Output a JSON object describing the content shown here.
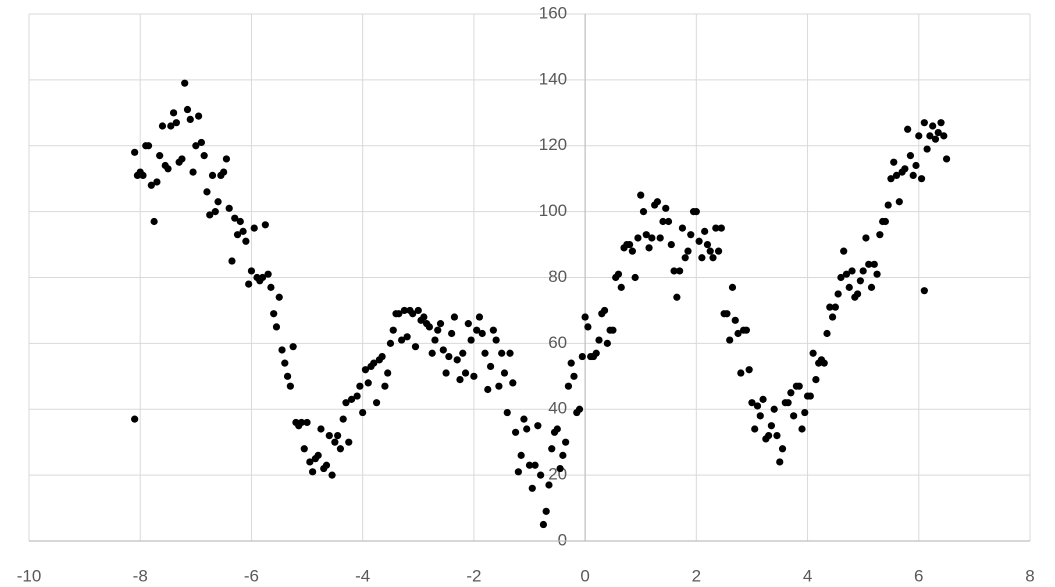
{
  "chart_data": {
    "type": "scatter",
    "color": "#000000",
    "grid": true,
    "xlim": [
      -10,
      8
    ],
    "xticks": [
      -10,
      -8,
      -6,
      -4,
      -2,
      0,
      2,
      4,
      6,
      8
    ],
    "ylim": [
      0,
      160
    ],
    "yticks": [
      0,
      20,
      40,
      60,
      80,
      100,
      120,
      140,
      160
    ],
    "x": [
      -8.1,
      -8.1,
      -8.05,
      -8.0,
      -7.95,
      -7.9,
      -7.85,
      -7.8,
      -7.75,
      -7.7,
      -7.65,
      -7.6,
      -7.55,
      -7.5,
      -7.45,
      -7.4,
      -7.35,
      -7.3,
      -7.25,
      -7.2,
      -7.15,
      -7.1,
      -7.05,
      -7.0,
      -6.95,
      -6.9,
      -6.85,
      -6.8,
      -6.75,
      -6.7,
      -6.65,
      -6.6,
      -6.55,
      -6.5,
      -6.45,
      -6.4,
      -6.35,
      -6.3,
      -6.25,
      -6.2,
      -6.15,
      -6.1,
      -6.05,
      -6.0,
      -5.95,
      -5.9,
      -5.85,
      -5.8,
      -5.75,
      -5.7,
      -5.65,
      -5.6,
      -5.55,
      -5.5,
      -5.45,
      -5.4,
      -5.35,
      -5.3,
      -5.25,
      -5.2,
      -5.15,
      -5.1,
      -5.05,
      -5.0,
      -4.95,
      -4.9,
      -4.85,
      -4.8,
      -4.75,
      -4.7,
      -4.65,
      -4.6,
      -4.55,
      -4.5,
      -4.45,
      -4.4,
      -4.35,
      -4.3,
      -4.25,
      -4.2,
      -4.1,
      -4.05,
      -4.0,
      -3.95,
      -3.9,
      -3.85,
      -3.8,
      -3.75,
      -3.7,
      -3.65,
      -3.6,
      -3.55,
      -3.5,
      -3.45,
      -3.4,
      -3.35,
      -3.3,
      -3.25,
      -3.2,
      -3.15,
      -3.1,
      -3.05,
      -3.0,
      -2.95,
      -2.9,
      -2.85,
      -2.8,
      -2.75,
      -2.7,
      -2.65,
      -2.6,
      -2.55,
      -2.5,
      -2.45,
      -2.4,
      -2.35,
      -2.3,
      -2.25,
      -2.2,
      -2.15,
      -2.1,
      -2.05,
      -2.0,
      -1.95,
      -1.9,
      -1.85,
      -1.8,
      -1.75,
      -1.7,
      -1.65,
      -1.6,
      -1.55,
      -1.5,
      -1.45,
      -1.4,
      -1.35,
      -1.3,
      -1.25,
      -1.2,
      -1.15,
      -1.1,
      -1.05,
      -1.0,
      -0.95,
      -0.9,
      -0.85,
      -0.8,
      -0.75,
      -0.7,
      -0.65,
      -0.6,
      -0.55,
      -0.5,
      -0.45,
      -0.4,
      -0.35,
      -0.3,
      -0.25,
      -0.2,
      -0.15,
      -0.1,
      -0.05,
      0.0,
      0.05,
      0.1,
      0.15,
      0.2,
      0.25,
      0.3,
      0.35,
      0.4,
      0.45,
      0.5,
      0.55,
      0.6,
      0.65,
      0.7,
      0.75,
      0.8,
      0.85,
      0.9,
      0.95,
      1.0,
      1.05,
      1.1,
      1.15,
      1.2,
      1.25,
      1.3,
      1.35,
      1.4,
      1.45,
      1.5,
      1.55,
      1.6,
      1.65,
      1.7,
      1.75,
      1.8,
      1.85,
      1.9,
      1.95,
      2.0,
      2.05,
      2.1,
      2.15,
      2.2,
      2.25,
      2.3,
      2.35,
      2.4,
      2.45,
      2.5,
      2.55,
      2.6,
      2.65,
      2.7,
      2.75,
      2.8,
      2.85,
      2.9,
      2.95,
      3.0,
      3.05,
      3.1,
      3.15,
      3.2,
      3.25,
      3.3,
      3.35,
      3.4,
      3.45,
      3.5,
      3.55,
      3.6,
      3.65,
      3.7,
      3.75,
      3.8,
      3.85,
      3.9,
      3.95,
      4.0,
      4.05,
      4.1,
      4.15,
      4.2,
      4.25,
      4.3,
      4.35,
      4.4,
      4.45,
      4.5,
      4.55,
      4.6,
      4.65,
      4.7,
      4.75,
      4.8,
      4.85,
      4.9,
      4.95,
      5.0,
      5.05,
      5.1,
      5.15,
      5.2,
      5.25,
      5.3,
      5.35,
      5.4,
      5.45,
      5.5,
      5.55,
      5.6,
      5.65,
      5.7,
      5.75,
      5.8,
      5.85,
      5.9,
      5.95,
      6.0,
      6.05,
      6.1,
      6.1,
      6.15,
      6.2,
      6.25,
      6.3,
      6.35,
      6.4,
      6.45,
      6.5
    ],
    "values": [
      37,
      118,
      111,
      112,
      111,
      120,
      120,
      108,
      97,
      109,
      117,
      126,
      114,
      113,
      126,
      130,
      127,
      115,
      116,
      139,
      131,
      128,
      112,
      120,
      129,
      121,
      117,
      106,
      99,
      111,
      100,
      103,
      111,
      112,
      116,
      101,
      85,
      98,
      93,
      97,
      94,
      91,
      78,
      82,
      95,
      80,
      79,
      80,
      96,
      81,
      77,
      69,
      65,
      74,
      58,
      54,
      50,
      47,
      59,
      36,
      35,
      36,
      28,
      36,
      24,
      21,
      25,
      26,
      34,
      22,
      23,
      32,
      20,
      30,
      32,
      28,
      37,
      42,
      30,
      43,
      44,
      47,
      39,
      52,
      48,
      53,
      54,
      42,
      55,
      56,
      47,
      51,
      60,
      64,
      69,
      69,
      61,
      70,
      62,
      70,
      69,
      59,
      70,
      67,
      68,
      66,
      65,
      57,
      61,
      64,
      66,
      58,
      51,
      56,
      63,
      68,
      55,
      49,
      57,
      51,
      66,
      61,
      50,
      64,
      68,
      63,
      57,
      46,
      53,
      64,
      61,
      47,
      57,
      51,
      39,
      57,
      48,
      33,
      21,
      26,
      37,
      34,
      23,
      16,
      23,
      35,
      20,
      5,
      9,
      17,
      28,
      33,
      34,
      22,
      26,
      30,
      47,
      54,
      50,
      39,
      40,
      56,
      68,
      65,
      56,
      56,
      57,
      61,
      69,
      70,
      60,
      64,
      64,
      80,
      81,
      77,
      89,
      90,
      90,
      88,
      80,
      92,
      105,
      100,
      93,
      89,
      92,
      102,
      103,
      92,
      97,
      101,
      97,
      90,
      82,
      74,
      82,
      95,
      86,
      88,
      93,
      100,
      100,
      91,
      86,
      94,
      90,
      88,
      86,
      95,
      88,
      95,
      69,
      69,
      61,
      77,
      67,
      63,
      51,
      64,
      64,
      52,
      42,
      34,
      41,
      38,
      43,
      31,
      32,
      35,
      40,
      32,
      24,
      28,
      42,
      42,
      45,
      38,
      47,
      47,
      34,
      39,
      44,
      44,
      57,
      49,
      54,
      55,
      54,
      63,
      71,
      68,
      71,
      75,
      80,
      88,
      81,
      77,
      82,
      74,
      75,
      79,
      82,
      92,
      84,
      77,
      84,
      81,
      93,
      97,
      97,
      102,
      110,
      115,
      111,
      103,
      112,
      113,
      125,
      117,
      111,
      114,
      123,
      110,
      127,
      76,
      119,
      123,
      126,
      122,
      124,
      127,
      123,
      116
    ]
  }
}
